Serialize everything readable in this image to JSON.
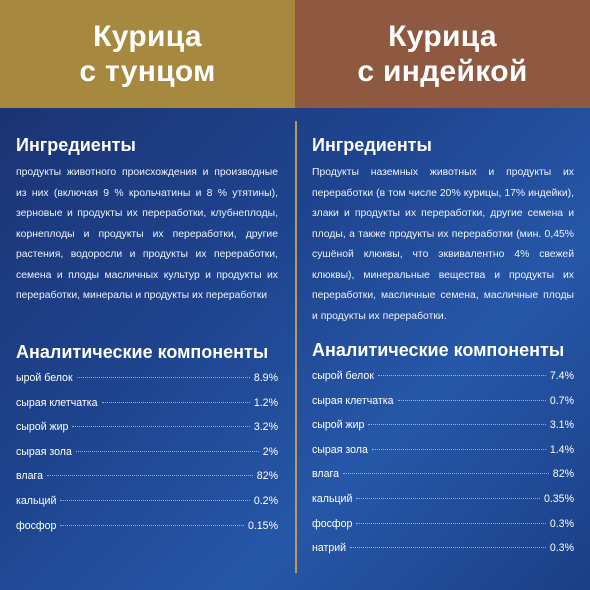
{
  "left": {
    "title_line1": "Курица",
    "title_line2": "с тунцом",
    "header_color": "#a6883f",
    "ingredients_title": "Ингредиенты",
    "ingredients_text": "продукты животного происхождения и производные из них (включая 9 % крольчатины и 8 % утятины), зерновые и продукты их переработки, клубнеплоды, корнеплоды и продукты их переработки, другие растения, водоросли и продукты их переработки, семена и плоды масличных культур и продукты их переработки, минералы и продукты их переработки",
    "analytics_title": "Аналитические компоненты",
    "components": [
      {
        "label": "ырой белок",
        "value": "8.9%"
      },
      {
        "label": "сырая клетчатка",
        "value": "1.2%"
      },
      {
        "label": "сырой жир",
        "value": "3.2%"
      },
      {
        "label": "сырая зола",
        "value": "2%"
      },
      {
        "label": "влага",
        "value": "82%"
      },
      {
        "label": "кальций",
        "value": "0.2%"
      },
      {
        "label": "фосфор",
        "value": "0.15%"
      }
    ]
  },
  "right": {
    "title_line1": "Курица",
    "title_line2": "с индейкой",
    "header_color": "#8f5840",
    "ingredients_title": "Ингредиенты",
    "ingredients_text": "Продукты наземных животных и продукты их переработки (в том числе 20% курицы, 17% индейки), злаки и продукты их переработки, другие семена и плоды, а также продукты их переработки (мин. 0,45% сушёной клюквы, что эквивалентно 4% свежей клюквы), минеральные вещества и продукты их переработки, масличные семена, масличные плоды и продукты их переработки.",
    "analytics_title": "Аналитические компоненты",
    "components": [
      {
        "label": "сырой белок",
        "value": "7.4%"
      },
      {
        "label": "сырая клетчатка",
        "value": "0.7%"
      },
      {
        "label": "сырой жир",
        "value": "3.1%"
      },
      {
        "label": "сырая зола",
        "value": "1.4%"
      },
      {
        "label": "влага",
        "value": "82%"
      },
      {
        "label": "кальций",
        "value": "0.35%"
      },
      {
        "label": "фосфор",
        "value": "0.3%"
      },
      {
        "label": "натрий",
        "value": "0.3%"
      }
    ]
  }
}
